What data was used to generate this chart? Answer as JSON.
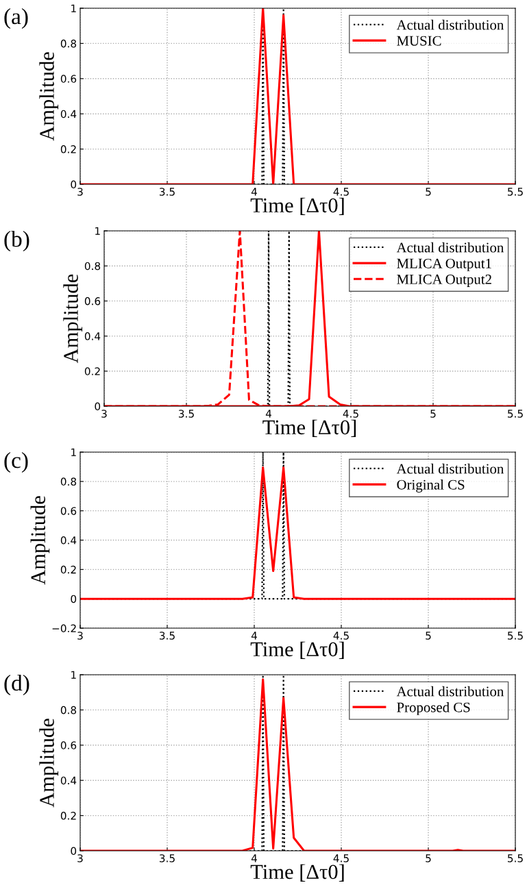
{
  "chart_data": [
    {
      "type": "line",
      "title": "(a)",
      "xlabel": "Time [Δτ0]",
      "ylabel": "Amplitude",
      "xlim": [
        3,
        5.5
      ],
      "xticks": [
        3,
        3.5,
        4,
        4.5,
        5,
        5.5
      ],
      "ylim": [
        0,
        1
      ],
      "yticks": [
        0,
        0.2,
        0.4,
        0.6,
        0.8,
        1
      ],
      "grid": true,
      "legend": "top right",
      "series": [
        {
          "name": "Actual distribution",
          "color": "#000000",
          "line_style": "dotted",
          "x": [
            3,
            4.045,
            4.05,
            4.055,
            4.163,
            4.168,
            4.173,
            5.5
          ],
          "values": [
            0,
            0,
            1,
            0,
            0,
            1,
            0,
            0
          ]
        },
        {
          "name": "MUSIC",
          "color": "#ff0000",
          "line_style": "solid",
          "x": [
            3,
            3.991,
            4.05,
            4.109,
            4.168,
            4.227,
            5.5
          ],
          "values": [
            0,
            0,
            1,
            0,
            0.96,
            0,
            0
          ]
        }
      ]
    },
    {
      "type": "line",
      "title": "(b)",
      "xlabel": "Time [Δτ0]",
      "ylabel": "Amplitude",
      "xlim": [
        3,
        5.5
      ],
      "xticks": [
        3,
        3.5,
        4,
        4.5,
        5,
        5.5
      ],
      "ylim": [
        0,
        1
      ],
      "yticks": [
        0,
        0.2,
        0.4,
        0.6,
        0.8,
        1
      ],
      "grid": true,
      "legend": "top right",
      "series": [
        {
          "name": "Actual distribution",
          "color": "#000000",
          "line_style": "dotted",
          "x": [
            3,
            3.995,
            4.0,
            4.005,
            4.119,
            4.124,
            4.129,
            5.5
          ],
          "values": [
            0,
            0,
            1,
            0,
            0,
            1,
            0,
            0
          ]
        },
        {
          "name": "MLICA Output1",
          "color": "#ff0000",
          "line_style": "solid",
          "x": [
            3,
            4.124,
            4.185,
            4.246,
            4.306,
            4.367,
            4.435,
            4.49,
            5.5
          ],
          "values": [
            0,
            0,
            0.005,
            0.04,
            1,
            0.055,
            0.01,
            0,
            0
          ]
        },
        {
          "name": "MLICA Output2",
          "color": "#ff0000",
          "line_style": "dashed",
          "x": [
            3,
            3.58,
            3.638,
            3.692,
            3.76,
            3.825,
            3.881,
            3.942,
            4.0,
            5.5
          ],
          "values": [
            0,
            0,
            0.003,
            0.01,
            0.065,
            1,
            0.036,
            0.005,
            0,
            0
          ]
        }
      ]
    },
    {
      "type": "line",
      "title": "(c)",
      "xlabel": "Time [Δτ0]",
      "ylabel": "Amplitude",
      "xlim": [
        3,
        5.5
      ],
      "xticks": [
        3,
        3.5,
        4,
        4.5,
        5,
        5.5
      ],
      "ylim": [
        -0.2,
        1
      ],
      "yticks": [
        {
          "value": -0.2,
          "label": "−0.2"
        },
        0,
        0.2,
        0.4,
        0.6,
        0.8,
        1
      ],
      "grid": true,
      "legend": "top right",
      "series": [
        {
          "name": "Actual distribution",
          "color": "#000000",
          "line_style": "dotted",
          "x": [
            3,
            4.045,
            4.05,
            4.055,
            4.163,
            4.168,
            4.173,
            5.5
          ],
          "values": [
            0,
            0,
            1,
            0,
            0,
            1,
            0,
            0
          ]
        },
        {
          "name": "Original CS",
          "color": "#ff0000",
          "line_style": "solid",
          "x": [
            3,
            3.932,
            3.991,
            4.05,
            4.109,
            4.168,
            4.227,
            4.286,
            5.5
          ],
          "values": [
            0,
            0,
            0.01,
            0.895,
            0.19,
            0.895,
            0.01,
            0,
            0
          ]
        }
      ]
    },
    {
      "type": "line",
      "title": "(d)",
      "xlabel": "Time [Δτ0]",
      "ylabel": "Amplitude",
      "xlim": [
        3,
        5.5
      ],
      "xticks": [
        3,
        3.5,
        4,
        4.5,
        5,
        5.5
      ],
      "ylim": [
        0,
        1
      ],
      "yticks": [
        0,
        0.2,
        0.4,
        0.6,
        0.8,
        1
      ],
      "grid": true,
      "legend": "top right",
      "series": [
        {
          "name": "Actual distribution",
          "color": "#000000",
          "line_style": "dotted",
          "x": [
            3,
            4.045,
            4.05,
            4.055,
            4.163,
            4.168,
            4.173,
            5.5
          ],
          "values": [
            0,
            0,
            1,
            0,
            0,
            1,
            0,
            0
          ]
        },
        {
          "name": "Proposed CS",
          "color": "#ff0000",
          "line_style": "solid",
          "x": [
            3,
            3.932,
            3.991,
            4.05,
            4.109,
            4.168,
            4.227,
            4.286,
            5.14,
            5.17,
            5.2,
            5.5
          ],
          "values": [
            0,
            0,
            0.017,
            0.974,
            0.013,
            0.868,
            0.074,
            0,
            0,
            0.005,
            0,
            0
          ]
        }
      ]
    }
  ]
}
